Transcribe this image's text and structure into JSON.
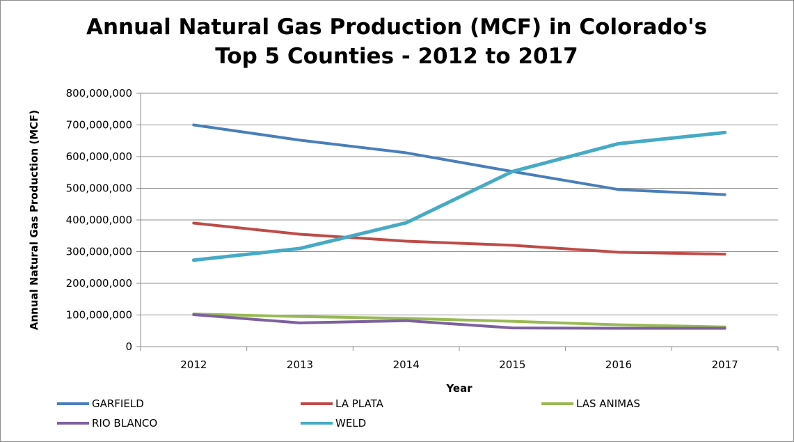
{
  "chart_data": {
    "type": "line",
    "title": [
      "Annual Natural Gas Production (MCF) in Colorado's",
      "Top 5 Counties -  2012 to 2017"
    ],
    "xlabel": "Year",
    "ylabel": "Annual Natural Gas Production (MCF)",
    "categories": [
      "2012",
      "2013",
      "2014",
      "2015",
      "2016",
      "2017"
    ],
    "ylim": [
      0,
      800000000
    ],
    "yticks": [
      0,
      100000000,
      200000000,
      300000000,
      400000000,
      500000000,
      600000000,
      700000000,
      800000000
    ],
    "ytick_labels": [
      "0",
      "100,000,000",
      "200,000,000",
      "300,000,000",
      "400,000,000",
      "500,000,000",
      "600,000,000",
      "700,000,000",
      "800,000,000"
    ],
    "grid": "horizontal",
    "legend_position": "bottom",
    "series": [
      {
        "name": "GARFIELD",
        "color": "#4a7ebb",
        "values": [
          700000000,
          652000000,
          612000000,
          553000000,
          496000000,
          480000000
        ]
      },
      {
        "name": "LA PLATA",
        "color": "#be4b48",
        "values": [
          390000000,
          355000000,
          333000000,
          320000000,
          298000000,
          292000000
        ]
      },
      {
        "name": "LAS ANIMAS",
        "color": "#98b954",
        "values": [
          103000000,
          95000000,
          89000000,
          80000000,
          69000000,
          62000000
        ]
      },
      {
        "name": "RIO BLANCO",
        "color": "#7d60a0",
        "values": [
          101000000,
          75000000,
          82000000,
          59000000,
          58000000,
          58000000
        ]
      },
      {
        "name": "WELD",
        "color": "#46aac5",
        "values": [
          273000000,
          310000000,
          391000000,
          553000000,
          641000000,
          676000000
        ]
      }
    ]
  }
}
